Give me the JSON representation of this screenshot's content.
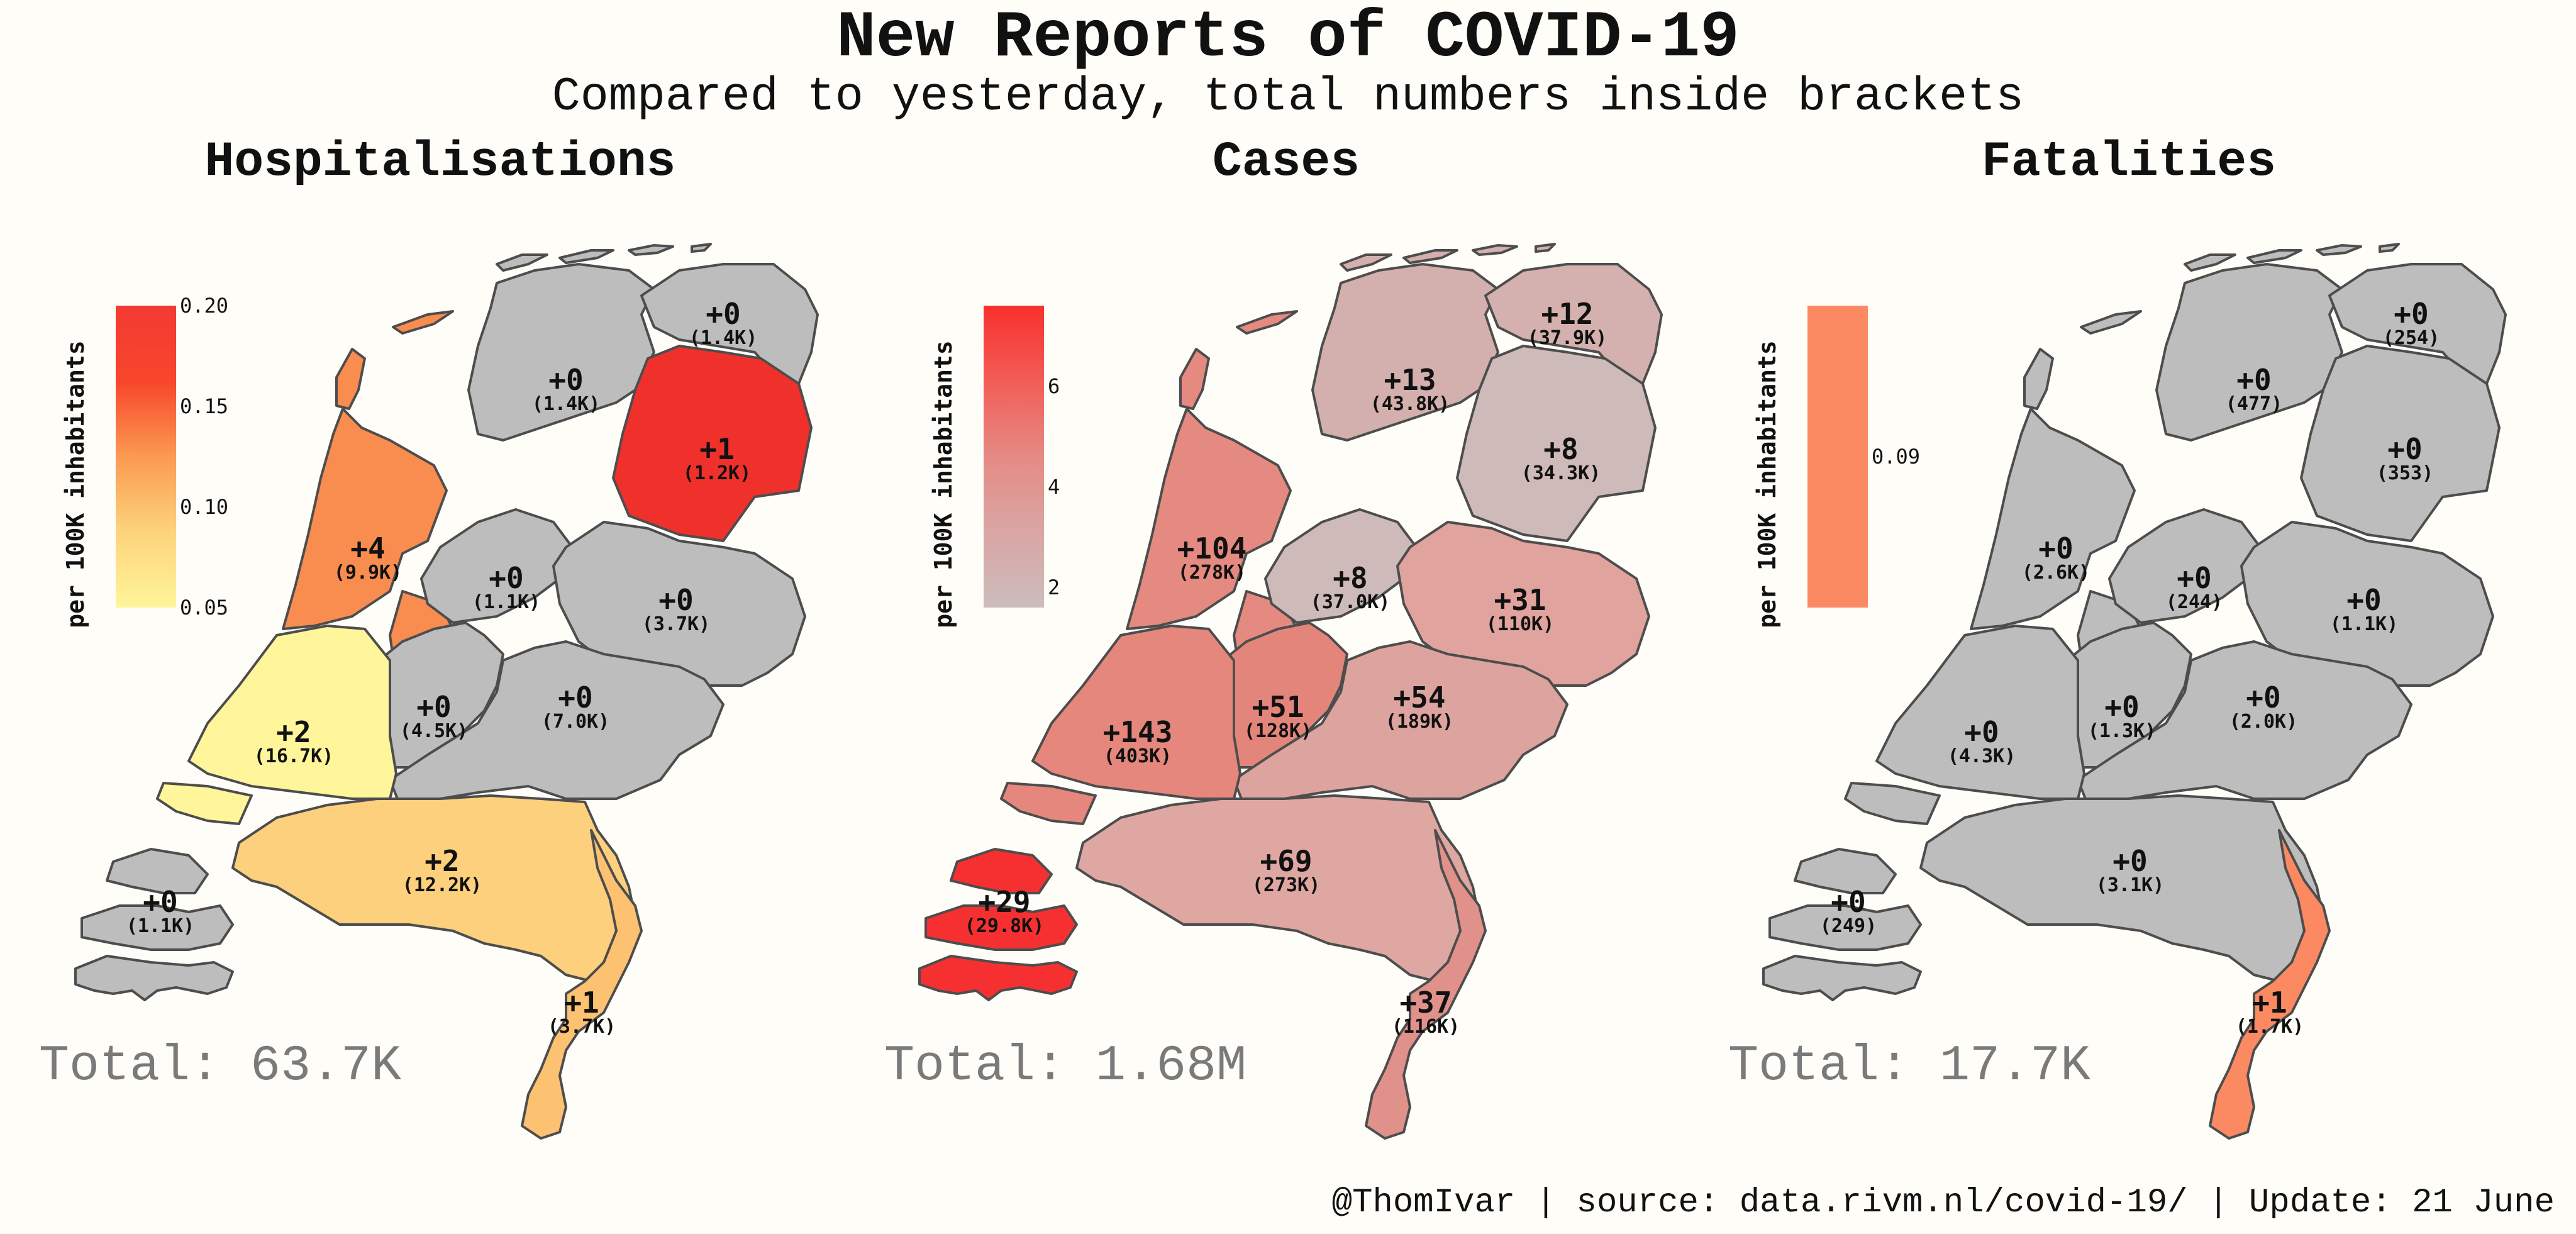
{
  "title": "New Reports of COVID-19",
  "subtitle": "Compared to yesterday, total numbers inside brackets",
  "footer": "@ThomIvar | source: data.rivm.nl/covid-19/ | Update: 21 June",
  "legend_title": "per 100K inhabitants",
  "colors": {
    "no_change": "#bdbdbd",
    "background": "#fffdf7",
    "border": "#4d4d4d",
    "total_text": "#7a7a7a"
  },
  "panels": [
    {
      "id": "hospitalisations",
      "title": "Hospitalisations",
      "total": "Total: 63.7K",
      "legend": {
        "gradient": [
          "#fff59a",
          "#fdd37c",
          "#fb9a50",
          "#f8462b",
          "#f23a33"
        ],
        "ticks": [
          "0.20",
          "0.15",
          "0.10",
          "0.05"
        ],
        "tick_values": [
          0.2,
          0.15,
          0.1,
          0.05
        ],
        "range": [
          0.05,
          0.2
        ]
      },
      "regions": {
        "groningen": {
          "new": "+0",
          "total": "(1.4K)",
          "fill": "#bdbdbd"
        },
        "friesland": {
          "new": "+0",
          "total": "(1.4K)",
          "fill": "#bdbdbd"
        },
        "drenthe": {
          "new": "+1",
          "total": "(1.2K)",
          "fill": "#f0302b"
        },
        "noord_holland": {
          "new": "+4",
          "total": "(9.9K)",
          "fill": "#f98c4f"
        },
        "flevoland": {
          "new": "+0",
          "total": "(1.1K)",
          "fill": "#bdbdbd"
        },
        "overijssel": {
          "new": "+0",
          "total": "(3.7K)",
          "fill": "#bdbdbd"
        },
        "utrecht": {
          "new": "+0",
          "total": "(4.5K)",
          "fill": "#bdbdbd"
        },
        "gelderland": {
          "new": "+0",
          "total": "(7.0K)",
          "fill": "#bdbdbd"
        },
        "zuid_holland": {
          "new": "+2",
          "total": "(16.7K)",
          "fill": "#fff59a"
        },
        "noord_brabant": {
          "new": "+2",
          "total": "(12.2K)",
          "fill": "#fcd07c"
        },
        "zeeland": {
          "new": "+0",
          "total": "(1.1K)",
          "fill": "#bdbdbd"
        },
        "limburg": {
          "new": "+1",
          "total": "(3.7K)",
          "fill": "#fcc272"
        }
      }
    },
    {
      "id": "cases",
      "title": "Cases",
      "total": "Total: 1.68M",
      "legend": {
        "gradient": [
          "#ccbcbc",
          "#d9a6a4",
          "#e68a84",
          "#f25d57",
          "#f9302d"
        ],
        "ticks": [
          "6",
          "4",
          "2"
        ],
        "tick_values": [
          6,
          4,
          2
        ],
        "range": [
          1.6,
          7.6
        ]
      },
      "regions": {
        "groningen": {
          "new": "+12",
          "total": "(37.9K)",
          "fill": "#d4b1ae"
        },
        "friesland": {
          "new": "+13",
          "total": "(43.8K)",
          "fill": "#d3b0ad"
        },
        "drenthe": {
          "new": "+8",
          "total": "(34.3K)",
          "fill": "#cebab8"
        },
        "noord_holland": {
          "new": "+104",
          "total": "(278K)",
          "fill": "#e48a80"
        },
        "flevoland": {
          "new": "+8",
          "total": "(37.0K)",
          "fill": "#cebab8"
        },
        "overijssel": {
          "new": "+31",
          "total": "(110K)",
          "fill": "#e0a39d"
        },
        "utrecht": {
          "new": "+51",
          "total": "(128K)",
          "fill": "#e4857c"
        },
        "gelderland": {
          "new": "+54",
          "total": "(189K)",
          "fill": "#dda39e"
        },
        "zuid_holland": {
          "new": "+143",
          "total": "(403K)",
          "fill": "#e5877d"
        },
        "noord_brabant": {
          "new": "+69",
          "total": "(273K)",
          "fill": "#dea7a2"
        },
        "zeeland": {
          "new": "+29",
          "total": "(29.8K)",
          "fill": "#f63030"
        },
        "limburg": {
          "new": "+37",
          "total": "(116K)",
          "fill": "#e0918a"
        }
      }
    },
    {
      "id": "fatalities",
      "title": "Fatalities",
      "total": "Total: 17.7K",
      "legend": {
        "gradient": [
          "#fb8a63",
          "#fb8a63"
        ],
        "ticks": [
          "0.09"
        ],
        "tick_values": [
          0.09
        ],
        "range": [
          0.0,
          0.18
        ]
      },
      "regions": {
        "groningen": {
          "new": "+0",
          "total": "(254)",
          "fill": "#bdbdbd"
        },
        "friesland": {
          "new": "+0",
          "total": "(477)",
          "fill": "#bdbdbd"
        },
        "drenthe": {
          "new": "+0",
          "total": "(353)",
          "fill": "#bdbdbd"
        },
        "noord_holland": {
          "new": "+0",
          "total": "(2.6K)",
          "fill": "#bdbdbd"
        },
        "flevoland": {
          "new": "+0",
          "total": "(244)",
          "fill": "#bdbdbd"
        },
        "overijssel": {
          "new": "+0",
          "total": "(1.1K)",
          "fill": "#bdbdbd"
        },
        "utrecht": {
          "new": "+0",
          "total": "(1.3K)",
          "fill": "#bdbdbd"
        },
        "gelderland": {
          "new": "+0",
          "total": "(2.0K)",
          "fill": "#bdbdbd"
        },
        "zuid_holland": {
          "new": "+0",
          "total": "(4.3K)",
          "fill": "#bdbdbd"
        },
        "noord_brabant": {
          "new": "+0",
          "total": "(3.1K)",
          "fill": "#bdbdbd"
        },
        "zeeland": {
          "new": "+0",
          "total": "(249)",
          "fill": "#bdbdbd"
        },
        "limburg": {
          "new": "+1",
          "total": "(1.7K)",
          "fill": "#fb8a63"
        }
      }
    }
  ]
}
